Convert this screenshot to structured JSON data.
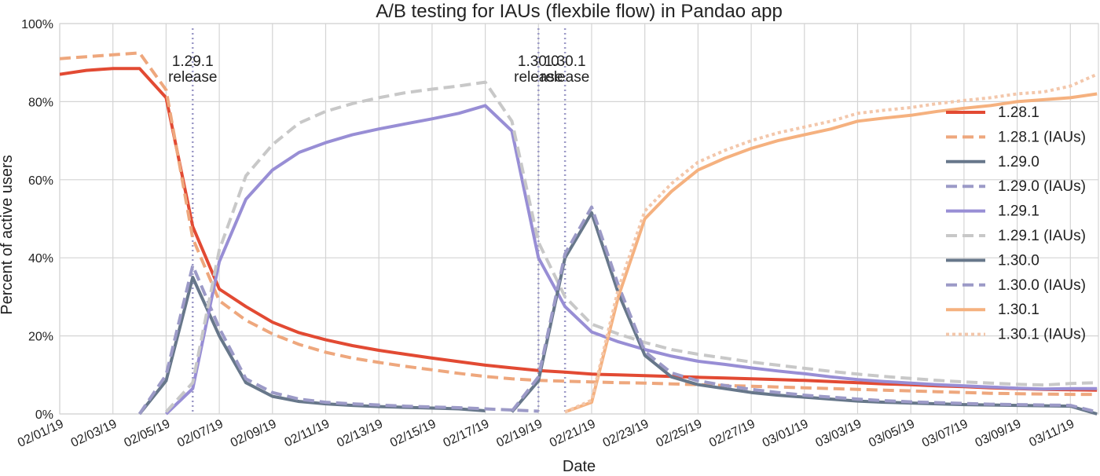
{
  "chart_data": {
    "type": "line",
    "title": "A/B testing for IAUs (flexbile flow) in Pandao app",
    "xlabel": "Date",
    "ylabel": "Percent of active users",
    "x_ticks": [
      "02/01/19",
      "02/03/19",
      "02/05/19",
      "02/07/19",
      "02/09/19",
      "02/11/19",
      "02/13/19",
      "02/15/19",
      "02/17/19",
      "02/19/19",
      "02/21/19",
      "02/23/19",
      "02/25/19",
      "02/27/19",
      "03/01/19",
      "03/03/19",
      "03/05/19",
      "03/07/19",
      "03/09/19",
      "03/11/19"
    ],
    "y_ticks": [
      "0%",
      "20%",
      "40%",
      "60%",
      "80%",
      "100%"
    ],
    "ylim": [
      0,
      100
    ],
    "grid": true,
    "legend_position": "right",
    "annotations": [
      {
        "x": "02/06/19",
        "line1": "1.29.1",
        "line2": "release"
      },
      {
        "x": "02/19/19",
        "line1": "1.30.0",
        "line2": "release"
      },
      {
        "x": "02/20/19",
        "line1": "1.30.1",
        "line2": "release"
      }
    ],
    "x": [
      "02/01/19",
      "02/02/19",
      "02/03/19",
      "02/04/19",
      "02/05/19",
      "02/06/19",
      "02/07/19",
      "02/08/19",
      "02/09/19",
      "02/10/19",
      "02/11/19",
      "02/12/19",
      "02/13/19",
      "02/14/19",
      "02/15/19",
      "02/16/19",
      "02/17/19",
      "02/18/19",
      "02/19/19",
      "02/20/19",
      "02/21/19",
      "02/22/19",
      "02/23/19",
      "02/24/19",
      "02/25/19",
      "02/26/19",
      "02/27/19",
      "02/28/19",
      "03/01/19",
      "03/02/19",
      "03/03/19",
      "03/04/19",
      "03/05/19",
      "03/06/19",
      "03/07/19",
      "03/08/19",
      "03/09/19",
      "03/10/19",
      "03/11/19",
      "03/12/19"
    ],
    "series": [
      {
        "name": "1.28.1",
        "color": "#e24a33",
        "dash": "solid",
        "values": [
          87,
          88,
          88.5,
          88.5,
          81,
          48,
          32,
          27.5,
          23.5,
          20.8,
          19,
          17.5,
          16.3,
          15.3,
          14.3,
          13.4,
          12.5,
          11.8,
          11.1,
          10.7,
          10.2,
          10,
          9.8,
          9.6,
          9.4,
          9.2,
          9,
          8.8,
          8.6,
          8.3,
          8,
          7.7,
          7.5,
          7.2,
          7,
          6.7,
          6.5,
          6.3,
          6.2,
          6.1
        ]
      },
      {
        "name": "1.28.1 (IAUs)",
        "color": "#eea77d",
        "dash": "dashed",
        "values": [
          91,
          91.5,
          92,
          92.5,
          83,
          45,
          29,
          24,
          20.5,
          17.8,
          15.8,
          14.3,
          13.2,
          12.2,
          11.3,
          10.4,
          9.6,
          9,
          8.6,
          8.4,
          8.2,
          8,
          7.9,
          7.7,
          7.5,
          7.3,
          7.1,
          6.9,
          6.7,
          6.5,
          6.3,
          6.1,
          5.9,
          5.7,
          5.5,
          5.3,
          5.2,
          5.1,
          5,
          5
        ]
      },
      {
        "name": "1.29.0",
        "color": "#67778a",
        "dash": "solid",
        "values": [
          null,
          null,
          null,
          0,
          8.5,
          35,
          20,
          8,
          4.5,
          3.2,
          2.6,
          2.2,
          1.9,
          1.7,
          1.5,
          1.3,
          0.8,
          null,
          null,
          null,
          null,
          null,
          null,
          null,
          null,
          null,
          null,
          null,
          null,
          null,
          null,
          null,
          null,
          null,
          null,
          null,
          null,
          null,
          null,
          null
        ]
      },
      {
        "name": "1.29.0 (IAUs)",
        "color": "#9c9ac7",
        "dash": "dashed",
        "values": [
          null,
          null,
          null,
          0,
          10,
          38,
          22,
          9,
          5.5,
          3.8,
          3,
          2.6,
          2.3,
          2,
          1.8,
          1.6,
          1.3,
          1,
          0.7,
          null,
          null,
          null,
          null,
          null,
          null,
          null,
          null,
          null,
          null,
          null,
          null,
          null,
          null,
          null,
          null,
          null,
          null,
          null,
          null,
          null
        ]
      },
      {
        "name": "1.29.1",
        "color": "#988ed5",
        "dash": "solid",
        "values": [
          null,
          null,
          null,
          null,
          0,
          6.5,
          39,
          55,
          62.5,
          67,
          69.5,
          71.5,
          73,
          74.3,
          75.6,
          77,
          79,
          72.5,
          40,
          27.5,
          21,
          18.5,
          16.5,
          14.8,
          13.5,
          12.7,
          11.8,
          11,
          10.3,
          9.5,
          8.8,
          8.3,
          7.9,
          7.5,
          7.2,
          6.9,
          6.6,
          6.4,
          6.5,
          6.5
        ]
      },
      {
        "name": "1.29.1 (IAUs)",
        "color": "#c8c8c8",
        "dash": "dashed",
        "values": [
          null,
          null,
          null,
          null,
          0.5,
          8,
          42,
          61,
          69,
          74.5,
          77.5,
          79.5,
          81,
          82.3,
          83.2,
          84,
          85,
          75,
          44,
          30,
          23,
          20.5,
          18.3,
          16.5,
          15.3,
          14.3,
          13.3,
          12.5,
          11.7,
          10.9,
          10.2,
          9.6,
          9.1,
          8.6,
          8.2,
          7.9,
          7.6,
          7.4,
          7.8,
          8
        ]
      },
      {
        "name": "1.30.0",
        "color": "#67778a",
        "dash": "solid",
        "values": [
          null,
          null,
          null,
          null,
          null,
          null,
          null,
          null,
          null,
          null,
          null,
          null,
          null,
          null,
          null,
          null,
          null,
          0.5,
          8.5,
          40,
          51.5,
          31,
          15,
          9.5,
          7.5,
          6.5,
          5.5,
          4.8,
          4.3,
          3.8,
          3.3,
          3,
          2.8,
          2.6,
          2.4,
          2.3,
          2.2,
          2.1,
          2,
          0
        ]
      },
      {
        "name": "1.30.0 (IAUs)",
        "color": "#9c9ac7",
        "dash": "dashed",
        "values": [
          null,
          null,
          null,
          null,
          null,
          null,
          null,
          null,
          null,
          null,
          null,
          null,
          null,
          null,
          null,
          null,
          null,
          0.7,
          9.5,
          41,
          53,
          33,
          16,
          10.5,
          8.5,
          7.3,
          6.3,
          5.5,
          4.8,
          4.3,
          3.8,
          3.4,
          3.1,
          2.9,
          2.7,
          2.5,
          2.4,
          2.3,
          2.2,
          0.5
        ]
      },
      {
        "name": "1.30.1",
        "color": "#f5b17f",
        "dash": "solid",
        "values": [
          null,
          null,
          null,
          null,
          null,
          null,
          null,
          null,
          null,
          null,
          null,
          null,
          null,
          null,
          null,
          null,
          null,
          null,
          null,
          0.5,
          3,
          30,
          50,
          57,
          62.5,
          65.5,
          68,
          70,
          71.5,
          73,
          75,
          75.8,
          76.5,
          77.5,
          78.3,
          79,
          80,
          80.5,
          81,
          82
        ]
      },
      {
        "name": "1.30.1 (IAUs)",
        "color": "#f3c7ab",
        "dash": "dotted",
        "values": [
          null,
          null,
          null,
          null,
          null,
          null,
          null,
          null,
          null,
          null,
          null,
          null,
          null,
          null,
          null,
          null,
          null,
          null,
          null,
          0.5,
          3.5,
          32,
          52,
          59,
          64.5,
          67.5,
          70,
          72,
          73.5,
          75,
          77,
          77.8,
          78.5,
          79.5,
          80.3,
          81,
          82,
          82.5,
          84,
          87
        ]
      }
    ]
  }
}
